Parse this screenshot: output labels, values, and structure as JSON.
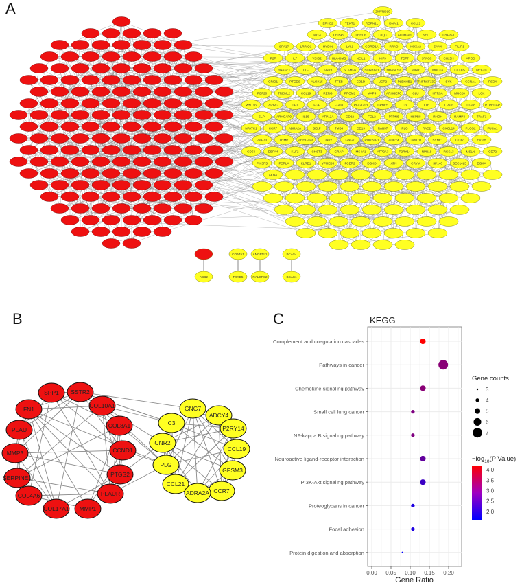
{
  "panels": {
    "a": "A",
    "b": "B",
    "c": "C"
  },
  "colors": {
    "red_module": "#ee1111",
    "yellow_module": "#ffff22",
    "edge": "#8a8a8a",
    "grid": "#ebebeb",
    "low": "#0000ff",
    "high": "#ff0000"
  },
  "network_a": {
    "yellow_labels": [
      "ZMYND10",
      "EFHC2",
      "TEKT1",
      "ROPN1L",
      "DNAI1",
      "CCL21",
      "ART4",
      "CRISP2",
      "LRRC6",
      "C1QC",
      "ALDH3A1",
      "SELL",
      "CYP2F1",
      "SPA17",
      "LRRIQ1",
      "HYDIN",
      "LYL1",
      "CORO1A",
      "RRAD",
      "HOXA2",
      "SAA4",
      "FILIP1",
      "P2F",
      "IL7",
      "VSIG2",
      "HLA-DMB",
      "NEIL1",
      "KIF9",
      "TCF7",
      "STAG3",
      "CH25H",
      "APOD",
      "RNASE1",
      "LTF",
      "AGR3",
      "SLAMF6",
      "SCGB1A1",
      "HRASLS2",
      "PIGR",
      "MUC13",
      "CXXC5",
      "MEF2C",
      "GRID1",
      "PTGDS",
      "ALOX15",
      "TFEB",
      "CD1D",
      "UCP2",
      "PLEKHB1",
      "TNFRSF13C",
      "SYK",
      "CCNA1",
      "PSD4",
      "FGF20",
      "TREML2",
      "CCL19",
      "RERG",
      "PROM1",
      "MAP4",
      "ARHGEF6",
      "CLU",
      "HTR3A",
      "MUC20",
      "LCK",
      "WNT16",
      "PARVG",
      "DPT",
      "FGF",
      "FGD3",
      "PLA2G1B",
      "CPNE5",
      "C3",
      "LTB",
      "LPAR",
      "ITGA8",
      "PTPRCAP",
      "SLPI",
      "ARHGAP9",
      "IL16",
      "ATP12A",
      "CD22",
      "FGL2",
      "PTPN6",
      "HSPB8",
      "RHOH",
      "RAMP3",
      "TRAF1",
      "NFATC1",
      "CCR7",
      "ADRA2A",
      "SELP",
      "TMB4",
      "CD19",
      "RAB37",
      "PLG",
      "RAC2",
      "CXCL14",
      "PLCG2",
      "FUCA1",
      "ZAP70",
      "LRMP",
      "ARHGAP4",
      "CNR2",
      "GNG7",
      "POU2AF1",
      "ADCY4",
      "CARD11",
      "SYNE1",
      "CD37",
      "EVI2B",
      "CD53",
      "DEFA4",
      "KLF2",
      "CHST3",
      "GRAP",
      "MS4A1",
      "ATP2A3",
      "P2RY14",
      "NPB19",
      "RGS13",
      "MSLN",
      "CD72",
      "PIK3R5",
      "FCRLA",
      "KLRB1",
      "VPREB3",
      "FCER2",
      "DGKD",
      "ATN",
      "CRYM",
      "SP140",
      "SEC14L3",
      "DGKA",
      "AKNA",
      "ASB2",
      "COATA1",
      "FXYD5",
      "ANGPTL1",
      "RALGPS2",
      "BCAS4",
      "BCAS1"
    ]
  },
  "network_b": {
    "red_nodes": [
      "SPP1",
      "SSTR2",
      "COL10A1",
      "FN1",
      "COL8A1",
      "PLAU",
      "CCND1",
      "MMP3",
      "PTGS2",
      "SERPINE1",
      "PLAUR",
      "COL4A6",
      "COL17A1",
      "MMP1"
    ],
    "yellow_nodes": [
      "GNG7",
      "ADCY4",
      "C3",
      "P2RY14",
      "CNR2",
      "CCL19",
      "PLG",
      "GPSM3",
      "CCL21",
      "CCR7",
      "ADRA2A"
    ]
  },
  "chart_data": {
    "type": "scatter",
    "title": "KEGG",
    "xlabel": "Gene Ratio",
    "ylabel": "",
    "xlim": [
      -0.01,
      0.235
    ],
    "xticks": [
      "0.00",
      "0.05",
      "0.10",
      "0.15",
      "0.20"
    ],
    "grid": true,
    "categories": [
      "Complement and coagulation cascades",
      "Pathways in cancer",
      "Chemokine signaling pathway",
      "Small cell lung cancer",
      "NF-kappa B signaling pathway",
      "Neuroactive ligand-receptor interaction",
      "PI3K-Akt signaling pathway",
      "Proteoglycans in cancer",
      "Focal adhesion",
      "Protein digestion and absorption"
    ],
    "gene_ratio": [
      0.133,
      0.186,
      0.133,
      0.107,
      0.107,
      0.133,
      0.133,
      0.107,
      0.107,
      0.08
    ],
    "gene_counts": [
      5,
      7,
      5,
      4,
      4,
      5,
      5,
      4,
      4,
      3
    ],
    "neg_log10_p": [
      4.2,
      3.0,
      3.0,
      2.9,
      2.9,
      2.6,
      2.2,
      1.9,
      1.9,
      1.6
    ],
    "size_legend": {
      "title": "Gene counts",
      "values": [
        "3",
        "4",
        "5",
        "6",
        "7"
      ]
    },
    "color_legend": {
      "title_prefix": "−log",
      "title_sub": "10",
      "title_suffix": "(P Value)",
      "range": [
        1.6,
        4.2
      ],
      "ticks": [
        "4.0",
        "3.5",
        "3.0",
        "2.5",
        "2.0"
      ]
    },
    "legend_placement": "right"
  }
}
